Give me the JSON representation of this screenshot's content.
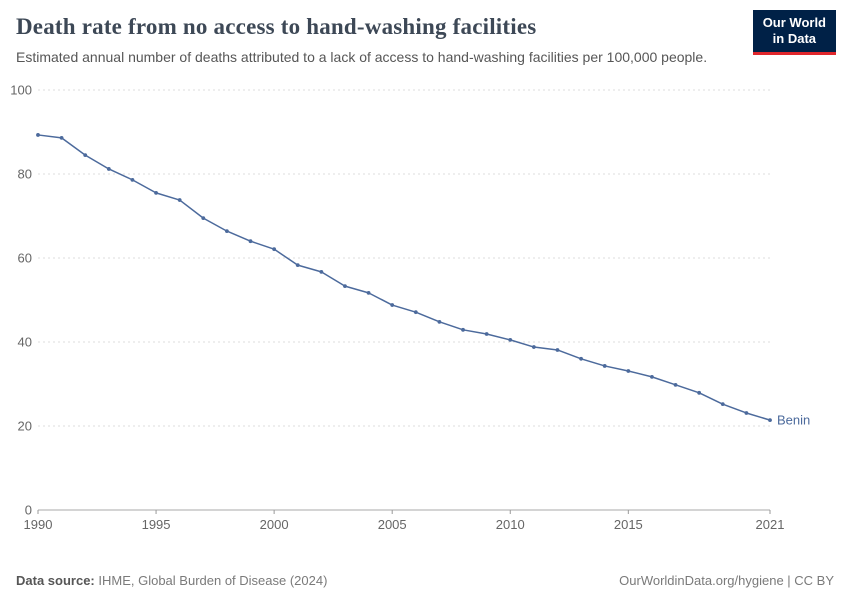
{
  "header": {
    "title": "Death rate from no access to hand-washing facilities",
    "subtitle": "Estimated annual number of deaths attributed to a lack of access to hand-washing facilities per 100,000 people.",
    "logo": {
      "line1": "Our World",
      "line2": "in Data"
    }
  },
  "chart_data": {
    "type": "line",
    "title": "Death rate from no access to hand-washing facilities",
    "xlabel": "",
    "ylabel": "",
    "xlim": [
      1990,
      2021
    ],
    "ylim": [
      0,
      100
    ],
    "x_ticks": [
      1990,
      1995,
      2000,
      2005,
      2010,
      2015,
      2021
    ],
    "y_ticks": [
      0,
      20,
      40,
      60,
      80,
      100
    ],
    "grid": true,
    "legend_position": "end-of-line",
    "series": [
      {
        "name": "Benin",
        "color": "#4c6a9c",
        "x": [
          1990,
          1991,
          1992,
          1993,
          1994,
          1995,
          1996,
          1997,
          1998,
          1999,
          2000,
          2001,
          2002,
          2003,
          2004,
          2005,
          2006,
          2007,
          2008,
          2009,
          2010,
          2011,
          2012,
          2013,
          2014,
          2015,
          2016,
          2017,
          2018,
          2019,
          2020,
          2021
        ],
        "values": [
          89.3,
          88.6,
          84.5,
          81.2,
          78.6,
          75.5,
          73.8,
          69.5,
          66.4,
          64.0,
          62.1,
          58.3,
          56.7,
          53.3,
          51.7,
          48.8,
          47.1,
          44.8,
          42.9,
          41.9,
          40.5,
          38.8,
          38.1,
          36.0,
          34.3,
          33.1,
          31.7,
          29.8,
          27.9,
          25.2,
          23.1,
          21.4
        ]
      }
    ]
  },
  "footer": {
    "source_label": "Data source:",
    "source": "IHME, Global Burden of Disease (2024)",
    "right": "OurWorldinData.org/hygiene | CC BY"
  }
}
